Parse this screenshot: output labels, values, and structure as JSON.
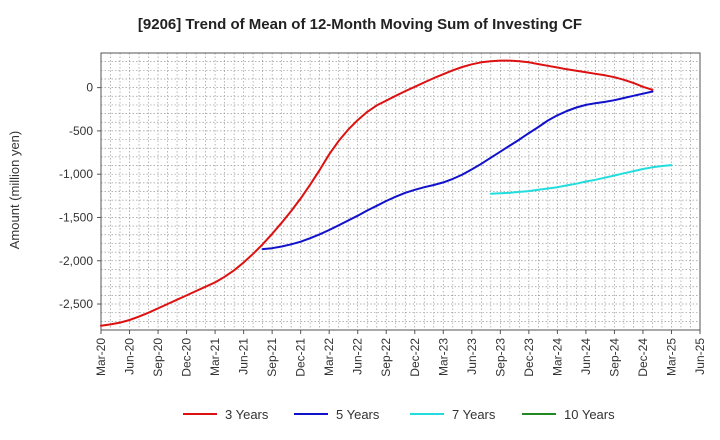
{
  "chart_data": {
    "type": "line",
    "title": "[9206]  Trend of Mean of 12-Month Moving Sum of Investing CF",
    "ylabel": "Amount (million yen)",
    "xlabel": "",
    "ylim": [
      -2800,
      400
    ],
    "yticks": [
      0,
      -500,
      -1000,
      -1500,
      -2000,
      -2500
    ],
    "ytick_labels": [
      "0",
      "-500",
      "-1,000",
      "-1,500",
      "-2,000",
      "-2,500"
    ],
    "x_months": [
      "2020-03",
      "2020-04",
      "2020-05",
      "2020-06",
      "2020-07",
      "2020-08",
      "2020-09",
      "2020-10",
      "2020-11",
      "2020-12",
      "2021-01",
      "2021-02",
      "2021-03",
      "2021-04",
      "2021-05",
      "2021-06",
      "2021-07",
      "2021-08",
      "2021-09",
      "2021-10",
      "2021-11",
      "2021-12",
      "2022-01",
      "2022-02",
      "2022-03",
      "2022-04",
      "2022-05",
      "2022-06",
      "2022-07",
      "2022-08",
      "2022-09",
      "2022-10",
      "2022-11",
      "2022-12",
      "2023-01",
      "2023-02",
      "2023-03",
      "2023-04",
      "2023-05",
      "2023-06",
      "2023-07",
      "2023-08",
      "2023-09",
      "2023-10",
      "2023-11",
      "2023-12",
      "2024-01",
      "2024-02",
      "2024-03",
      "2024-04",
      "2024-05",
      "2024-06",
      "2024-07",
      "2024-08",
      "2024-09",
      "2024-10",
      "2024-11",
      "2024-12",
      "2025-01",
      "2025-02",
      "2025-03",
      "2025-04",
      "2025-05",
      "2025-06"
    ],
    "xtick_labels": [
      "Mar-20",
      "Jun-20",
      "Sep-20",
      "Dec-20",
      "Mar-21",
      "Jun-21",
      "Sep-21",
      "Dec-21",
      "Mar-22",
      "Jun-22",
      "Sep-22",
      "Dec-22",
      "Mar-23",
      "Jun-23",
      "Sep-23",
      "Dec-23",
      "Mar-24",
      "Jun-24",
      "Sep-24",
      "Dec-24",
      "Mar-25",
      "Jun-25"
    ],
    "grid": true,
    "legend_position": "bottom",
    "series": [
      {
        "name": "3 Years",
        "color": "#dd1111",
        "start": "2020-03",
        "values": [
          -2750,
          -2735,
          -2715,
          -2685,
          -2645,
          -2600,
          -2550,
          -2500,
          -2450,
          -2400,
          -2350,
          -2300,
          -2250,
          -2185,
          -2110,
          -2020,
          -1920,
          -1810,
          -1690,
          -1560,
          -1425,
          -1280,
          -1120,
          -950,
          -770,
          -615,
          -485,
          -375,
          -280,
          -205,
          -150,
          -95,
          -40,
          10,
          60,
          110,
          155,
          200,
          238,
          270,
          292,
          305,
          312,
          312,
          305,
          292,
          272,
          252,
          232,
          212,
          195,
          178,
          160,
          142,
          120,
          90,
          55,
          10,
          -25
        ]
      },
      {
        "name": "5 Years",
        "color": "#1111cc",
        "start": "2021-08",
        "values": [
          -1865,
          -1855,
          -1835,
          -1810,
          -1780,
          -1740,
          -1695,
          -1645,
          -1590,
          -1535,
          -1480,
          -1420,
          -1365,
          -1310,
          -1260,
          -1215,
          -1180,
          -1150,
          -1125,
          -1095,
          -1055,
          -1005,
          -945,
          -880,
          -810,
          -740,
          -670,
          -600,
          -525,
          -455,
          -380,
          -320,
          -270,
          -230,
          -200,
          -180,
          -165,
          -145,
          -120,
          -95,
          -70,
          -45
        ]
      },
      {
        "name": "7 Years",
        "color": "#22dddd",
        "start": "2023-08",
        "values": [
          -1225,
          -1220,
          -1215,
          -1205,
          -1195,
          -1180,
          -1165,
          -1150,
          -1130,
          -1110,
          -1085,
          -1065,
          -1040,
          -1015,
          -990,
          -965,
          -940,
          -920,
          -905,
          -895
        ]
      },
      {
        "name": "10 Years",
        "color": "#228822",
        "start": "2025-03",
        "values": []
      }
    ]
  }
}
